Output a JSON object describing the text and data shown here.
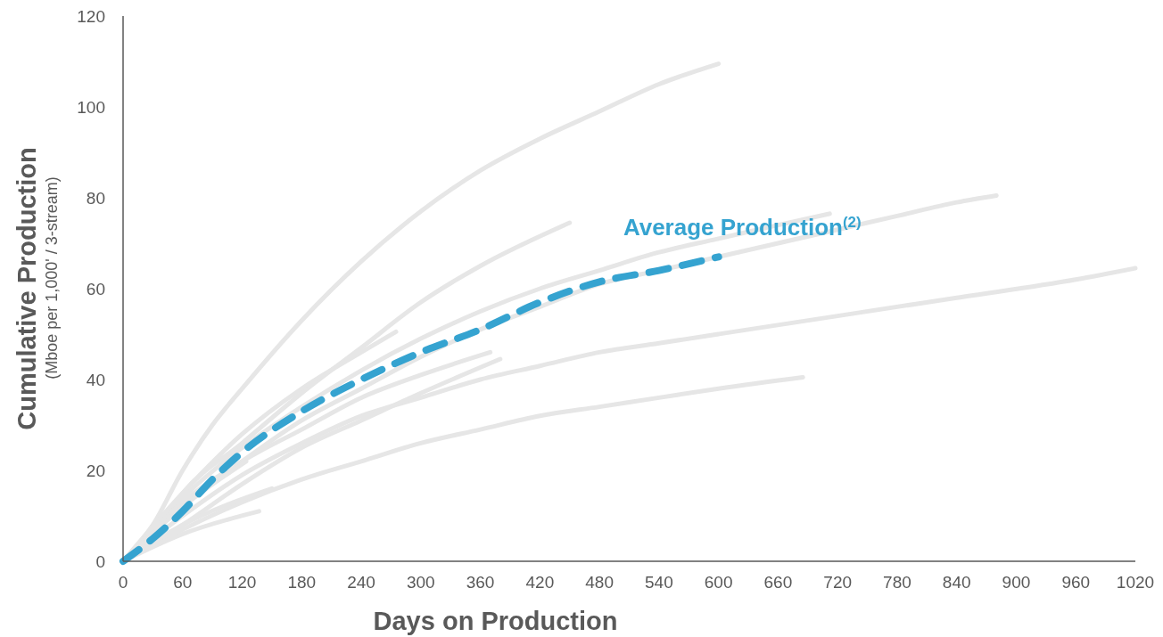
{
  "chart_data": {
    "type": "line",
    "xlabel": "Days on Production",
    "ylabel": "Cumulative Production\n(Mboe per 1,000' / 3-stream)",
    "xlim": [
      0,
      1020
    ],
    "xticks": [
      0,
      60,
      120,
      180,
      240,
      300,
      360,
      420,
      480,
      540,
      600,
      660,
      720,
      780,
      840,
      900,
      960,
      1020
    ],
    "ylim": [
      0,
      120
    ],
    "yticks": [
      0,
      20,
      40,
      60,
      80,
      100,
      120
    ],
    "grid": false,
    "marker": "none",
    "series": [
      {
        "color": "#e6e6e6",
        "line_style": "solid",
        "x": [
          0,
          30,
          60,
          90,
          120,
          180,
          240,
          300,
          360,
          420,
          480,
          540,
          600
        ],
        "values": [
          0,
          8,
          20,
          30,
          38,
          53,
          66,
          77,
          86,
          93,
          99,
          105,
          109.5
        ]
      },
      {
        "color": "#e6e6e6",
        "line_style": "solid",
        "x": [
          0,
          30,
          60,
          120,
          180,
          240,
          300,
          360,
          450
        ],
        "values": [
          0,
          6,
          15,
          26,
          37,
          47,
          57,
          65,
          74.5
        ]
      },
      {
        "color": "#e6e6e6",
        "line_style": "solid",
        "x": [
          0,
          60,
          120,
          180,
          240,
          300,
          360,
          420,
          480,
          540,
          600,
          660,
          712
        ],
        "values": [
          0,
          14,
          25,
          34,
          42,
          49,
          55,
          60,
          64,
          68,
          71,
          74,
          76.5
        ]
      },
      {
        "color": "#e6e6e6",
        "line_style": "solid",
        "x": [
          0,
          60,
          120,
          180,
          240,
          300,
          360,
          420,
          480,
          540,
          600,
          660,
          720,
          780,
          840,
          880
        ],
        "values": [
          0,
          12,
          22,
          31,
          38,
          45,
          51,
          56,
          61,
          64,
          67,
          70,
          73,
          76,
          79,
          80.5
        ]
      },
      {
        "color": "#e6e6e6",
        "line_style": "solid",
        "x": [
          0,
          60,
          120,
          180,
          240,
          300,
          360,
          420,
          480,
          540,
          600,
          720,
          840,
          960,
          1020
        ],
        "values": [
          0,
          10,
          19,
          26,
          32,
          36,
          40,
          43,
          46,
          48,
          50,
          54,
          58,
          62,
          64.5
        ]
      },
      {
        "color": "#e6e6e6",
        "line_style": "solid",
        "x": [
          0,
          60,
          120,
          180,
          240,
          300,
          360,
          420,
          480,
          540,
          600,
          685
        ],
        "values": [
          0,
          7,
          13,
          18,
          22,
          26,
          29,
          32,
          34,
          36,
          38,
          40.5
        ]
      },
      {
        "color": "#e6e6e6",
        "line_style": "solid",
        "x": [
          0,
          60,
          120,
          180,
          240,
          275
        ],
        "values": [
          0,
          15,
          28,
          38,
          46,
          50.5
        ]
      },
      {
        "color": "#e6e6e6",
        "line_style": "solid",
        "x": [
          0,
          60,
          120,
          180,
          240,
          300,
          370
        ],
        "values": [
          0,
          13,
          22,
          29,
          36,
          41,
          46
        ]
      },
      {
        "color": "#e6e6e6",
        "line_style": "solid",
        "x": [
          0,
          60,
          120,
          180,
          240,
          300,
          380
        ],
        "values": [
          0,
          8,
          17,
          25,
          31,
          37,
          44.5
        ]
      },
      {
        "color": "#e6e6e6",
        "line_style": "solid",
        "x": [
          0,
          60,
          150
        ],
        "values": [
          0,
          8,
          16
        ]
      },
      {
        "color": "#e6e6e6",
        "line_style": "solid",
        "x": [
          0,
          60,
          137
        ],
        "values": [
          0,
          6,
          11
        ]
      },
      {
        "color": "#e6e6e6",
        "line_style": "solid",
        "x": [
          0,
          60,
          124
        ],
        "values": [
          0,
          12,
          22
        ]
      },
      {
        "name": "Average Production$^{(2)}$",
        "color": "#35a3d0",
        "line_style": "dashed",
        "x": [
          0,
          30,
          60,
          90,
          120,
          180,
          240,
          300,
          360,
          420,
          480,
          540,
          600
        ],
        "values": [
          0,
          5,
          11,
          18,
          24,
          33,
          40,
          46,
          51,
          57,
          61.5,
          64,
          67
        ]
      }
    ]
  }
}
